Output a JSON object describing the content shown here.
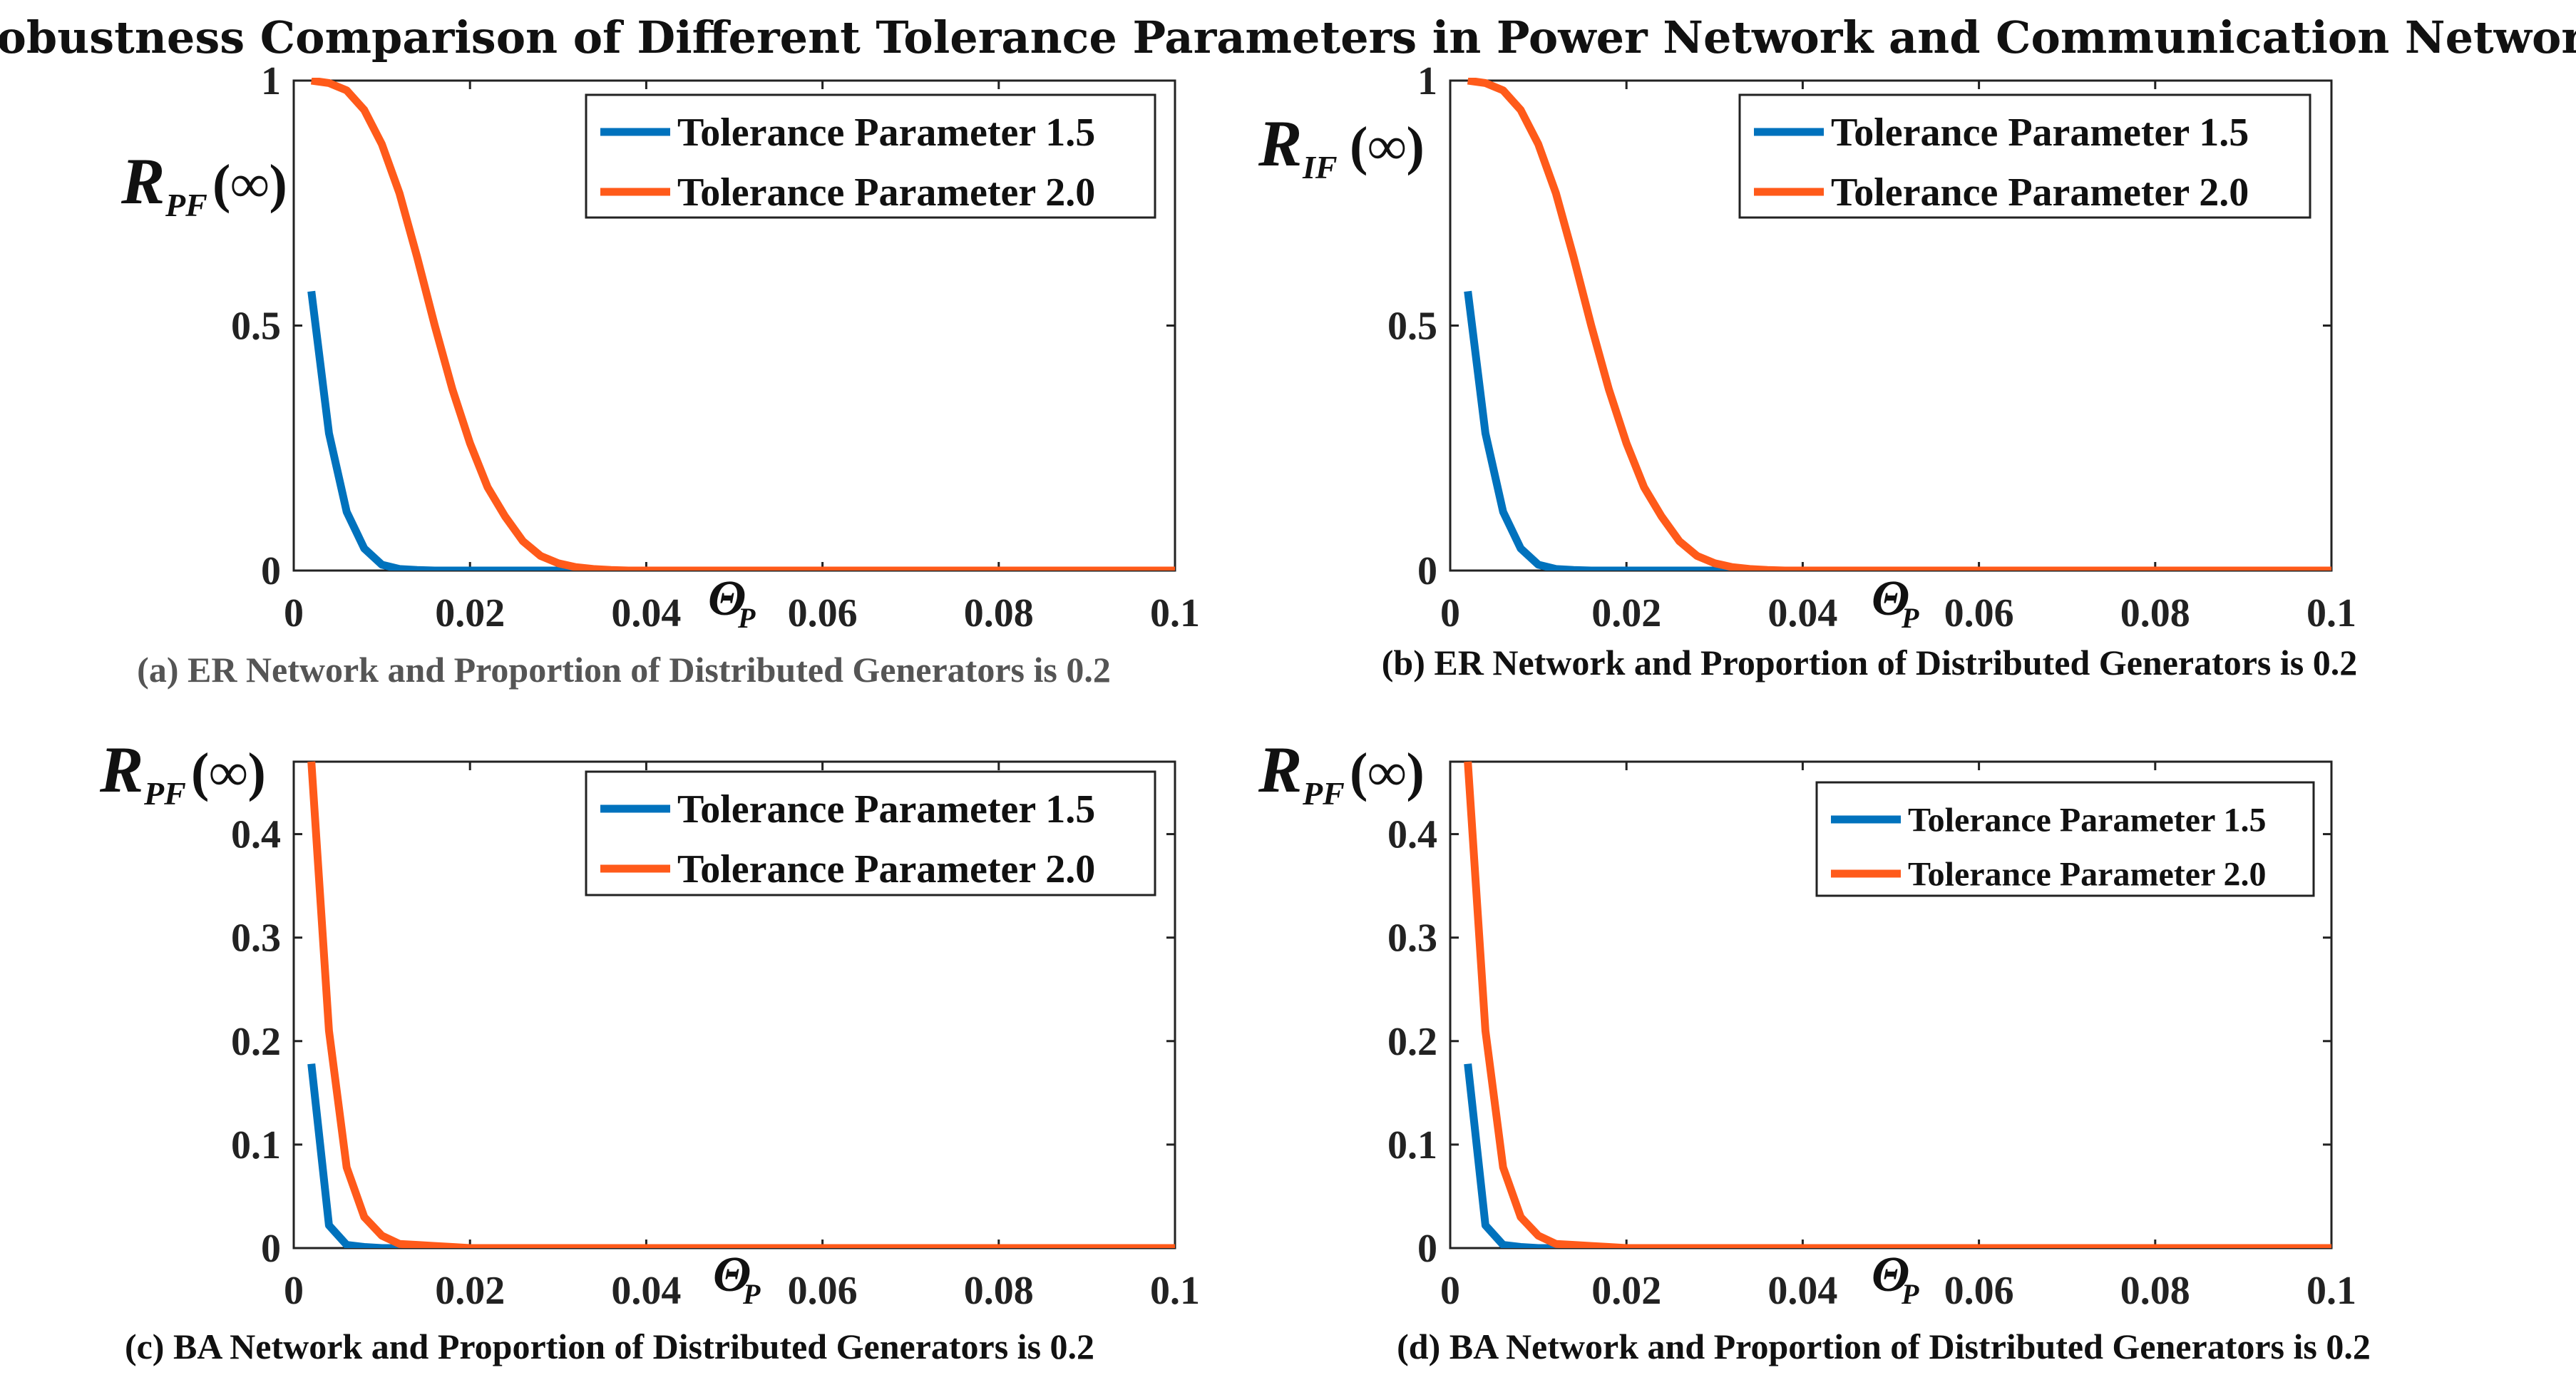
{
  "title": "Robustness Comparison of Different Tolerance Parameters in Power Network and Communication Network",
  "colors": {
    "series_1": "#0072BD",
    "series_2": "#FF5A1A",
    "axis": "#222222",
    "caption_dark": "#111111",
    "caption_gray": "#555555"
  },
  "chart_data": [
    {
      "type": "line",
      "caption": "(a) ER Network and Proportion of Distributed Generators is 0.2",
      "ylabel": {
        "main": "R",
        "sub": "PF",
        "tail": "(∞)"
      },
      "xlabel": {
        "main": "Θ",
        "sub": "P"
      },
      "xlim": [
        0,
        0.1
      ],
      "ylim": [
        0,
        1
      ],
      "xticks": [
        0,
        0.02,
        0.04,
        0.06,
        0.08,
        0.1
      ],
      "xtick_labels": [
        "0",
        "0.02",
        "0.04",
        "0.06",
        "0.08",
        "0.1"
      ],
      "yticks": [
        0,
        0.5,
        1
      ],
      "ytick_labels": [
        "0",
        "0.5",
        "1"
      ],
      "legend": "top-right",
      "grid": false,
      "series": [
        {
          "name": "Tolerance Parameter 1.5",
          "x": [
            0.002,
            0.004,
            0.006,
            0.008,
            0.01,
            0.012,
            0.014,
            0.016,
            0.02,
            0.03,
            0.04,
            0.05,
            0.06,
            0.07,
            0.08,
            0.09,
            0.1
          ],
          "y": [
            0.57,
            0.28,
            0.12,
            0.045,
            0.012,
            0.003,
            0.001,
            0,
            0,
            0,
            0,
            0,
            0,
            0,
            0,
            0,
            0
          ]
        },
        {
          "name": "Tolerance Parameter 2.0",
          "x": [
            0.002,
            0.004,
            0.006,
            0.008,
            0.01,
            0.012,
            0.014,
            0.016,
            0.018,
            0.02,
            0.022,
            0.024,
            0.026,
            0.028,
            0.03,
            0.032,
            0.034,
            0.036,
            0.038,
            0.04,
            0.045,
            0.05,
            0.06,
            0.07,
            0.08,
            0.09,
            0.1
          ],
          "y": [
            1.0,
            0.995,
            0.98,
            0.94,
            0.87,
            0.77,
            0.64,
            0.5,
            0.37,
            0.26,
            0.17,
            0.11,
            0.06,
            0.03,
            0.015,
            0.007,
            0.003,
            0.001,
            0,
            0,
            0,
            0,
            0,
            0,
            0,
            0,
            0
          ]
        }
      ]
    },
    {
      "type": "line",
      "caption": "(b) ER Network and Proportion of Distributed Generators is 0.2",
      "ylabel": {
        "main": "R",
        "sub": "IF",
        "tail": "(∞)"
      },
      "xlabel": {
        "main": "Θ",
        "sub": "P"
      },
      "xlim": [
        0,
        0.1
      ],
      "ylim": [
        0,
        1
      ],
      "xticks": [
        0,
        0.02,
        0.04,
        0.06,
        0.08,
        0.1
      ],
      "xtick_labels": [
        "0",
        "0.02",
        "0.04",
        "0.06",
        "0.08",
        "0.1"
      ],
      "yticks": [
        0,
        0.5,
        1
      ],
      "ytick_labels": [
        "0",
        "0.5",
        "1"
      ],
      "legend": "top-right",
      "grid": false,
      "series": [
        {
          "name": "Tolerance Parameter 1.5",
          "x": [
            0.002,
            0.004,
            0.006,
            0.008,
            0.01,
            0.012,
            0.014,
            0.016,
            0.02,
            0.03,
            0.04,
            0.05,
            0.06,
            0.07,
            0.08,
            0.09,
            0.1
          ],
          "y": [
            0.57,
            0.28,
            0.12,
            0.045,
            0.012,
            0.003,
            0.001,
            0,
            0,
            0,
            0,
            0,
            0,
            0,
            0,
            0,
            0
          ]
        },
        {
          "name": "Tolerance Parameter 2.0",
          "x": [
            0.002,
            0.004,
            0.006,
            0.008,
            0.01,
            0.012,
            0.014,
            0.016,
            0.018,
            0.02,
            0.022,
            0.024,
            0.026,
            0.028,
            0.03,
            0.032,
            0.034,
            0.036,
            0.038,
            0.04,
            0.045,
            0.05,
            0.06,
            0.07,
            0.08,
            0.09,
            0.1
          ],
          "y": [
            1.0,
            0.995,
            0.98,
            0.94,
            0.87,
            0.77,
            0.64,
            0.5,
            0.37,
            0.26,
            0.17,
            0.11,
            0.06,
            0.03,
            0.015,
            0.007,
            0.003,
            0.001,
            0,
            0,
            0,
            0,
            0,
            0,
            0,
            0,
            0
          ]
        }
      ]
    },
    {
      "type": "line",
      "caption": "(c) BA Network and Proportion of Distributed Generators is 0.2",
      "ylabel": {
        "main": "R",
        "sub": "PF",
        "tail": "(∞)"
      },
      "xlabel": {
        "main": "Θ",
        "sub": "P"
      },
      "xlim": [
        0,
        0.1
      ],
      "ylim": [
        0,
        0.47
      ],
      "xticks": [
        0,
        0.02,
        0.04,
        0.06,
        0.08,
        0.1
      ],
      "xtick_labels": [
        "0",
        "0.02",
        "0.04",
        "0.06",
        "0.08",
        "0.1"
      ],
      "yticks": [
        0,
        0.1,
        0.2,
        0.3,
        0.4
      ],
      "ytick_labels": [
        "0",
        "0.1",
        "0.2",
        "0.3",
        "0.4"
      ],
      "legend": "top-right",
      "grid": false,
      "series": [
        {
          "name": "Tolerance Parameter 1.5",
          "x": [
            0.002,
            0.004,
            0.006,
            0.008,
            0.01,
            0.012,
            0.02,
            0.04,
            0.06,
            0.08,
            0.1
          ],
          "y": [
            0.178,
            0.022,
            0.003,
            0.001,
            0,
            0,
            0,
            0,
            0,
            0,
            0
          ]
        },
        {
          "name": "Tolerance Parameter 2.0",
          "x": [
            0.002,
            0.004,
            0.006,
            0.008,
            0.01,
            0.012,
            0.014,
            0.016,
            0.018,
            0.02,
            0.04,
            0.06,
            0.08,
            0.1
          ],
          "y": [
            0.47,
            0.21,
            0.078,
            0.03,
            0.012,
            0.004,
            0.003,
            0.002,
            0.001,
            0,
            0,
            0,
            0,
            0
          ]
        }
      ]
    },
    {
      "type": "line",
      "caption": "(d) BA Network and Proportion of Distributed Generators is 0.2",
      "ylabel": {
        "main": "R",
        "sub": "PF",
        "tail": "(∞)"
      },
      "xlabel": {
        "main": "Θ",
        "sub": "P"
      },
      "xlim": [
        0,
        0.1
      ],
      "ylim": [
        0,
        0.47
      ],
      "xticks": [
        0,
        0.02,
        0.04,
        0.06,
        0.08,
        0.1
      ],
      "xtick_labels": [
        "0",
        "0.02",
        "0.04",
        "0.06",
        "0.08",
        "0.1"
      ],
      "yticks": [
        0,
        0.1,
        0.2,
        0.3,
        0.4
      ],
      "ytick_labels": [
        "0",
        "0.1",
        "0.2",
        "0.3",
        "0.4"
      ],
      "legend": "top-right",
      "grid": false,
      "series": [
        {
          "name": "Tolerance Parameter 1.5",
          "x": [
            0.002,
            0.004,
            0.006,
            0.008,
            0.01,
            0.012,
            0.02,
            0.04,
            0.06,
            0.08,
            0.1
          ],
          "y": [
            0.178,
            0.022,
            0.003,
            0.001,
            0,
            0,
            0,
            0,
            0,
            0,
            0
          ]
        },
        {
          "name": "Tolerance Parameter 2.0",
          "x": [
            0.002,
            0.004,
            0.006,
            0.008,
            0.01,
            0.012,
            0.014,
            0.016,
            0.018,
            0.02,
            0.04,
            0.06,
            0.08,
            0.1
          ],
          "y": [
            0.47,
            0.21,
            0.078,
            0.03,
            0.012,
            0.004,
            0.003,
            0.002,
            0.001,
            0,
            0,
            0,
            0,
            0
          ]
        }
      ]
    }
  ]
}
